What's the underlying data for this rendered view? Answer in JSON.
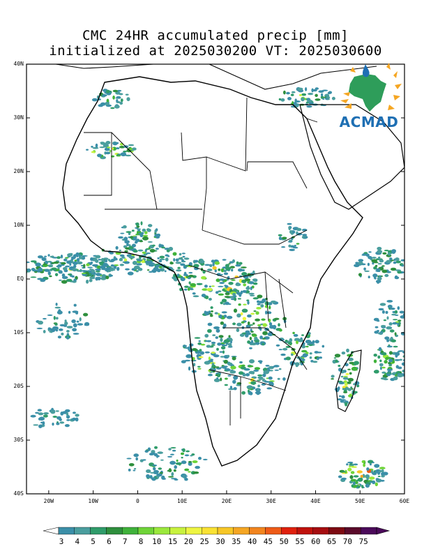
{
  "title": {
    "line1": "CMC 24HR accumulated precip [mm]",
    "line2": "initialized at 2025030200 VT: 2025030600"
  },
  "axes": {
    "y_labels": [
      "40N",
      "30N",
      "20N",
      "10N",
      "EQ",
      "10S",
      "20S",
      "30S",
      "40S"
    ],
    "x_labels": [
      "20W",
      "10W",
      "0",
      "10E",
      "20E",
      "30E",
      "40E",
      "50E",
      "60E"
    ],
    "lon_range": [
      -25,
      60
    ],
    "lat_range": [
      -40,
      40
    ]
  },
  "colorbar": {
    "labels": [
      "3",
      "4",
      "5",
      "6",
      "7",
      "8",
      "10",
      "15",
      "20",
      "25",
      "30",
      "35",
      "40",
      "45",
      "50",
      "55",
      "60",
      "65",
      "70",
      "75"
    ],
    "colors": [
      "#3b8fa8",
      "#4a9e9e",
      "#2f9c6a",
      "#2e8f3d",
      "#3fb23a",
      "#6fd438",
      "#9be83c",
      "#c8f23e",
      "#eef542",
      "#f9e233",
      "#f7c726",
      "#f5a623",
      "#f2851e",
      "#ee5b17",
      "#e0200d",
      "#c0120c",
      "#a60d10",
      "#7d0a12",
      "#5a0a2a",
      "#4b0a5a"
    ]
  },
  "logo": {
    "text": "ACMAD",
    "brand_color": "#1e6fb3",
    "continent_color": "#2e9d5a",
    "drop_color": "#1e6fb3",
    "sun_color": "#f5a623"
  }
}
